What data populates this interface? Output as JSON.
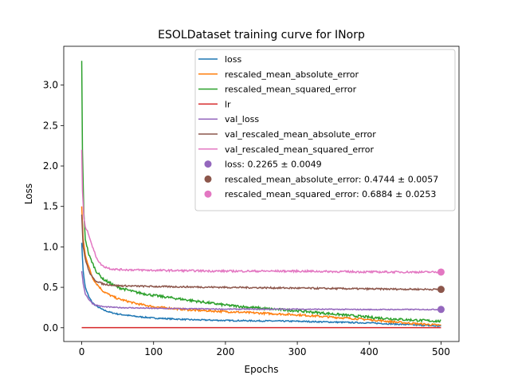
{
  "chart_data": {
    "type": "line",
    "title": "ESOLDataset training curve for INorp",
    "xlabel": "Epochs",
    "ylabel": "Loss",
    "xlim": [
      -25,
      525
    ],
    "ylim": [
      -0.17,
      3.48
    ],
    "xticks": [
      0,
      100,
      200,
      300,
      400,
      500
    ],
    "yticks": [
      0.0,
      0.5,
      1.0,
      1.5,
      2.0,
      2.5,
      3.0
    ],
    "ytick_labels": [
      "0.0",
      "0.5",
      "1.0",
      "1.5",
      "2.0",
      "2.5",
      "3.0"
    ],
    "grid": false,
    "legend_position": "top-right",
    "series": [
      {
        "name": "loss",
        "color": "#1f77b4",
        "points": [
          [
            0,
            1.05
          ],
          [
            2,
            0.7
          ],
          [
            5,
            0.5
          ],
          [
            10,
            0.38
          ],
          [
            15,
            0.31
          ],
          [
            20,
            0.27
          ],
          [
            30,
            0.22
          ],
          [
            40,
            0.19
          ],
          [
            50,
            0.17
          ],
          [
            75,
            0.14
          ],
          [
            100,
            0.12
          ],
          [
            150,
            0.1
          ],
          [
            200,
            0.09
          ],
          [
            250,
            0.085
          ],
          [
            300,
            0.08
          ],
          [
            350,
            0.07
          ],
          [
            400,
            0.06
          ],
          [
            450,
            0.04
          ],
          [
            500,
            0.02
          ]
        ],
        "noise": 0.008
      },
      {
        "name": "rescaled_mean_absolute_error",
        "color": "#ff7f0e",
        "points": [
          [
            0,
            1.5
          ],
          [
            2,
            1.1
          ],
          [
            5,
            0.9
          ],
          [
            10,
            0.75
          ],
          [
            15,
            0.62
          ],
          [
            20,
            0.55
          ],
          [
            30,
            0.45
          ],
          [
            40,
            0.4
          ],
          [
            50,
            0.36
          ],
          [
            75,
            0.3
          ],
          [
            100,
            0.26
          ],
          [
            150,
            0.22
          ],
          [
            200,
            0.2
          ],
          [
            250,
            0.18
          ],
          [
            300,
            0.16
          ],
          [
            350,
            0.13
          ],
          [
            400,
            0.1
          ],
          [
            450,
            0.06
          ],
          [
            500,
            0.03
          ]
        ],
        "noise": 0.012
      },
      {
        "name": "rescaled_mean_squared_error",
        "color": "#2ca02c",
        "points": [
          [
            0,
            3.3
          ],
          [
            1,
            2.2
          ],
          [
            3,
            1.4
          ],
          [
            5,
            1.1
          ],
          [
            10,
            0.9
          ],
          [
            15,
            0.8
          ],
          [
            20,
            0.7
          ],
          [
            30,
            0.6
          ],
          [
            40,
            0.55
          ],
          [
            50,
            0.5
          ],
          [
            75,
            0.44
          ],
          [
            100,
            0.4
          ],
          [
            150,
            0.34
          ],
          [
            200,
            0.28
          ],
          [
            250,
            0.24
          ],
          [
            300,
            0.21
          ],
          [
            350,
            0.17
          ],
          [
            400,
            0.13
          ],
          [
            450,
            0.1
          ],
          [
            500,
            0.08
          ]
        ],
        "noise": 0.015
      },
      {
        "name": "lr",
        "color": "#d62728",
        "points": [
          [
            0,
            0.001
          ],
          [
            500,
            0.001
          ]
        ],
        "noise": 0
      },
      {
        "name": "val_loss",
        "color": "#9467bd",
        "points": [
          [
            0,
            0.7
          ],
          [
            2,
            0.55
          ],
          [
            5,
            0.42
          ],
          [
            10,
            0.35
          ],
          [
            15,
            0.3
          ],
          [
            20,
            0.28
          ],
          [
            30,
            0.26
          ],
          [
            50,
            0.25
          ],
          [
            100,
            0.24
          ],
          [
            200,
            0.23
          ],
          [
            300,
            0.23
          ],
          [
            400,
            0.225
          ],
          [
            500,
            0.226
          ]
        ],
        "noise": 0.006
      },
      {
        "name": "val_rescaled_mean_absolute_error",
        "color": "#8c564b",
        "points": [
          [
            0,
            1.4
          ],
          [
            2,
            1.0
          ],
          [
            5,
            0.85
          ],
          [
            10,
            0.7
          ],
          [
            15,
            0.62
          ],
          [
            20,
            0.58
          ],
          [
            30,
            0.54
          ],
          [
            40,
            0.53
          ],
          [
            50,
            0.52
          ],
          [
            100,
            0.51
          ],
          [
            200,
            0.5
          ],
          [
            300,
            0.49
          ],
          [
            400,
            0.48
          ],
          [
            500,
            0.474
          ]
        ],
        "noise": 0.01
      },
      {
        "name": "val_rescaled_mean_squared_error",
        "color": "#e377c2",
        "points": [
          [
            0,
            2.2
          ],
          [
            1,
            1.7
          ],
          [
            3,
            1.35
          ],
          [
            5,
            1.25
          ],
          [
            10,
            1.15
          ],
          [
            15,
            1.0
          ],
          [
            20,
            0.88
          ],
          [
            25,
            0.8
          ],
          [
            30,
            0.76
          ],
          [
            40,
            0.73
          ],
          [
            50,
            0.72
          ],
          [
            100,
            0.71
          ],
          [
            200,
            0.7
          ],
          [
            300,
            0.7
          ],
          [
            400,
            0.69
          ],
          [
            500,
            0.688
          ]
        ],
        "noise": 0.012
      }
    ],
    "markers": [
      {
        "name": "loss: 0.2265 ± 0.0049",
        "x": 500,
        "y": 0.2265,
        "color": "#9467bd"
      },
      {
        "name": "rescaled_mean_absolute_error: 0.4744 ± 0.0057",
        "x": 500,
        "y": 0.4744,
        "color": "#8c564b"
      },
      {
        "name": "rescaled_mean_squared_error: 0.6884 ± 0.0253",
        "x": 500,
        "y": 0.6884,
        "color": "#e377c2"
      }
    ]
  }
}
